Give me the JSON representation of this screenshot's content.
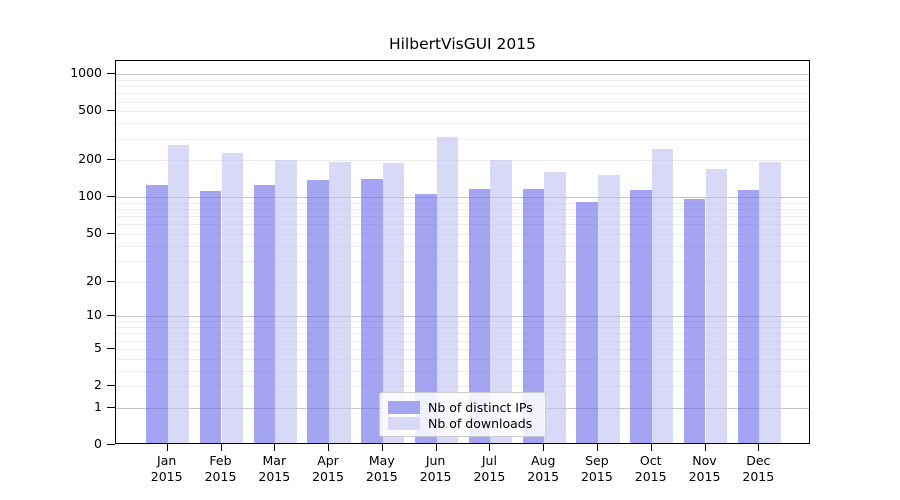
{
  "chart_data": {
    "type": "bar",
    "title": "HilbertVisGUI 2015",
    "categories": [
      "Jan 2015",
      "Feb 2015",
      "Mar 2015",
      "Apr 2015",
      "May 2015",
      "Jun 2015",
      "Jul 2015",
      "Aug 2015",
      "Sep 2015",
      "Oct 2015",
      "Nov 2015",
      "Dec 2015"
    ],
    "series": [
      {
        "name": "Nb of distinct IPs",
        "display_color": "#a4a4f2",
        "fill": "rgba(108,108,234,0.62)",
        "values": [
          122,
          108,
          122,
          134,
          137,
          102,
          113,
          112,
          89,
          111,
          94,
          110
        ]
      },
      {
        "name": "Nb of downloads",
        "display_color": "#d8d8f7",
        "fill": "rgba(192,192,242,0.62)",
        "values": [
          255,
          221,
          194,
          188,
          185,
          300,
          195,
          156,
          147,
          237,
          163,
          188
        ]
      }
    ],
    "yscale": "log10(1+x)",
    "yticks": [
      0,
      1,
      2,
      5,
      10,
      20,
      50,
      100,
      200,
      500,
      1000
    ],
    "gridlines": {
      "major": [
        1,
        10,
        100,
        1000
      ],
      "minor": [
        2,
        3,
        4,
        5,
        6,
        7,
        8,
        9,
        20,
        30,
        40,
        50,
        60,
        70,
        80,
        90,
        200,
        300,
        400,
        500,
        600,
        700,
        800,
        900
      ],
      "major_color": "#c4c4c4",
      "minor_color": "#ececec"
    },
    "ylim_top_value": 1280,
    "legend_position": "inside-bottom-center",
    "grid": true
  }
}
